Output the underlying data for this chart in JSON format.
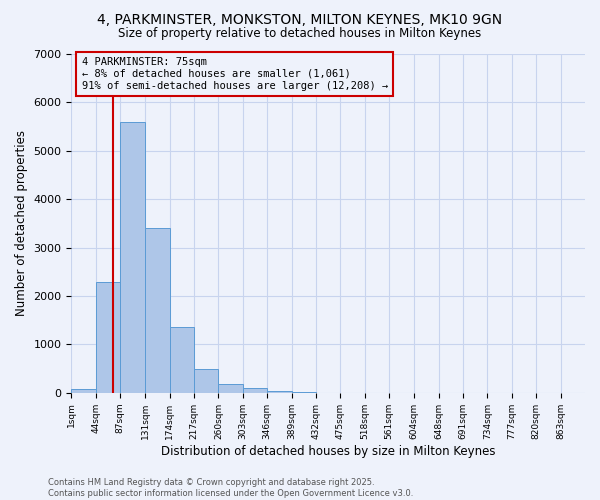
{
  "title": "4, PARKMINSTER, MONKSTON, MILTON KEYNES, MK10 9GN",
  "subtitle": "Size of property relative to detached houses in Milton Keynes",
  "xlabel": "Distribution of detached houses by size in Milton Keynes",
  "ylabel": "Number of detached properties",
  "footnote1": "Contains HM Land Registry data © Crown copyright and database right 2025.",
  "footnote2": "Contains public sector information licensed under the Open Government Licence v3.0.",
  "bins": [
    1,
    44,
    87,
    131,
    174,
    217,
    260,
    303,
    346,
    389,
    432,
    475,
    518,
    561,
    604,
    648,
    691,
    734,
    777,
    820,
    863
  ],
  "bin_width": 43,
  "bar_heights": [
    75,
    2300,
    5600,
    3400,
    1350,
    490,
    175,
    90,
    40,
    10,
    5,
    3,
    2,
    1,
    1,
    0,
    0,
    0,
    0,
    0
  ],
  "bar_color": "#aec6e8",
  "bar_edge_color": "#5b9bd5",
  "ylim": [
    0,
    7000
  ],
  "yticks": [
    0,
    1000,
    2000,
    3000,
    4000,
    5000,
    6000,
    7000
  ],
  "property_size": 75,
  "annotation_line1": "4 PARKMINSTER: 75sqm",
  "annotation_line2": "← 8% of detached houses are smaller (1,061)",
  "annotation_line3": "91% of semi-detached houses are larger (12,208) →",
  "vline_color": "#cc0000",
  "annotation_box_color": "#cc0000",
  "background_color": "#eef2fb",
  "grid_color": "#c8d4ee"
}
